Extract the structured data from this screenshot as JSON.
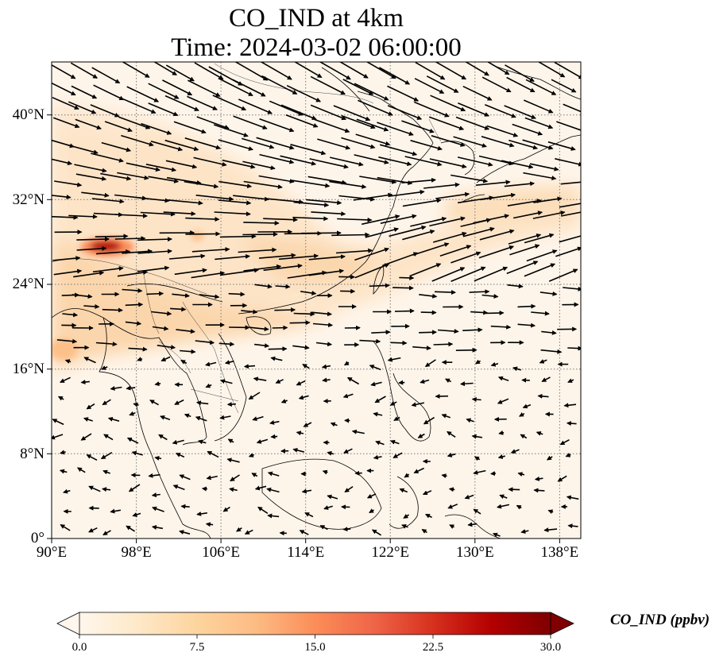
{
  "title": {
    "line1": "CO_IND at 4km",
    "line2": "Time: 2024-03-02 06:00:00"
  },
  "map": {
    "lon_range": [
      90,
      140
    ],
    "lat_range": [
      0,
      45
    ],
    "gridlines": "dotted",
    "lon_ticks": [
      "90°E",
      "98°E",
      "106°E",
      "114°E",
      "122°E",
      "130°E",
      "138°E"
    ],
    "lat_ticks": [
      "0°",
      "8°N",
      "16°N",
      "24°N",
      "32°N",
      "40°N"
    ],
    "field_variable": "CO_IND",
    "overlay": "wind vectors"
  },
  "colorbar": {
    "label": "CO_IND (ppbv)",
    "ticks": [
      "0.0",
      "7.5",
      "15.0",
      "22.5",
      "30.0"
    ],
    "range": [
      0,
      30
    ],
    "extend": "both",
    "colormap": "OrRd",
    "colors": [
      "#fff7ec",
      "#fee8c8",
      "#fdd49e",
      "#fdbb84",
      "#fc8d59",
      "#ef6548",
      "#d7301f",
      "#b30000",
      "#7f0000"
    ]
  }
}
